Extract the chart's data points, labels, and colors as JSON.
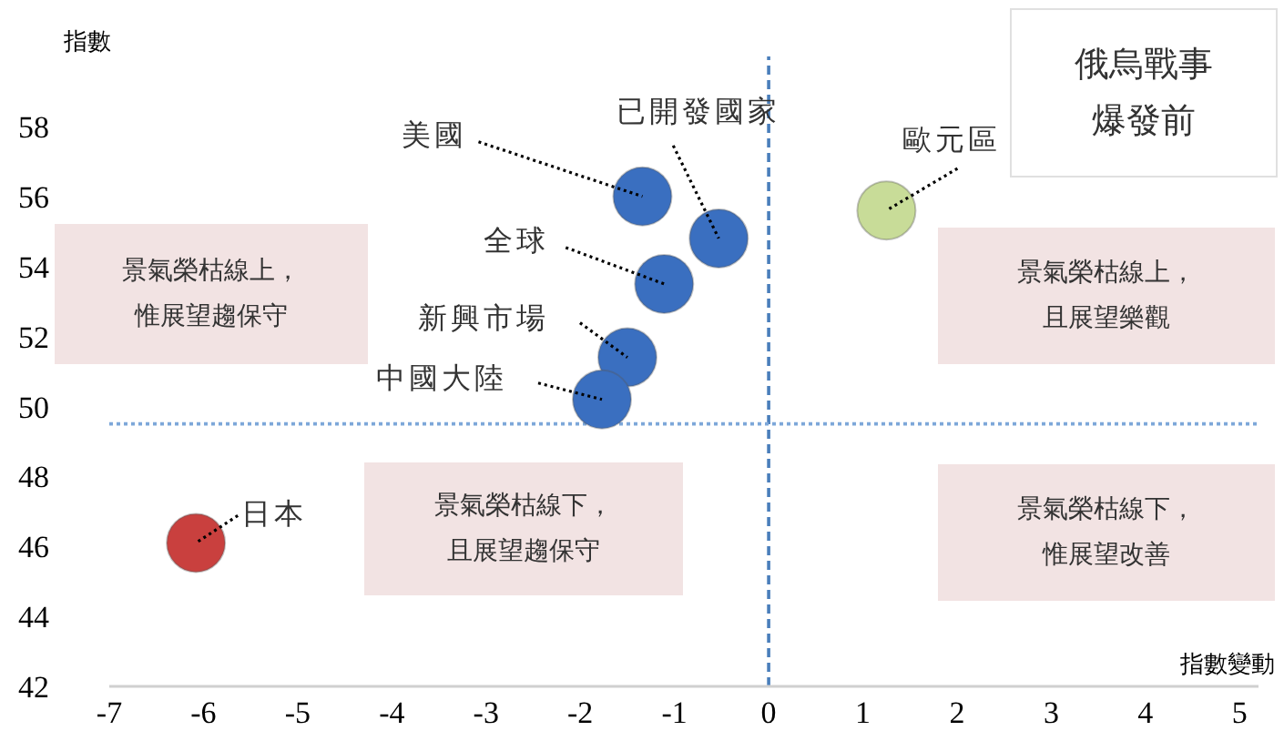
{
  "chart_data": {
    "type": "scatter",
    "title": "俄烏戰事爆發前",
    "xlabel": "指數變動",
    "ylabel": "指數",
    "xlim": [
      -7,
      5.2
    ],
    "xticks": [
      -7,
      -6,
      -5,
      -4,
      -3,
      -2,
      -1,
      0,
      1,
      2,
      3,
      4,
      5
    ],
    "ylim": [
      42,
      60
    ],
    "yticks": [
      42,
      44,
      46,
      48,
      50,
      52,
      54,
      56,
      58
    ],
    "grid": false,
    "legend": false,
    "marker": "circle",
    "series": [
      {
        "name": "美國",
        "color": "#3a6fc0",
        "x": [
          -1.34
        ],
        "values": [
          56.0
        ]
      },
      {
        "name": "已開發國家",
        "color": "#3a6fc0",
        "x": [
          -0.53
        ],
        "values": [
          54.8
        ]
      },
      {
        "name": "全球",
        "color": "#3a6fc0",
        "x": [
          -1.11
        ],
        "values": [
          53.5
        ]
      },
      {
        "name": "新興市場",
        "color": "#3a6fc0",
        "x": [
          -1.5
        ],
        "values": [
          51.4
        ]
      },
      {
        "name": "中國大陸",
        "color": "#3a6fc0",
        "x": [
          -1.77
        ],
        "values": [
          50.2
        ]
      },
      {
        "name": "歐元區",
        "color": "#c8dc98",
        "x": [
          1.25
        ],
        "values": [
          55.6
        ]
      },
      {
        "name": "日本",
        "color": "#c9403e",
        "x": [
          -6.08
        ],
        "values": [
          46.1
        ]
      }
    ],
    "ref_lines": [
      {
        "axis": "x",
        "value": 0,
        "color": "#4a7ebb",
        "line_style": "dashed"
      },
      {
        "axis": "y",
        "value": 49.5,
        "color": "#7da7d9",
        "line_style": "dotted"
      }
    ],
    "annotations": [
      "景氣榮枯線上，惟展望趨保守",
      "景氣榮枯線上，且展望樂觀",
      "景氣榮枯線下，且展望趨保守",
      "景氣榮枯線下，惟展望改善"
    ]
  }
}
